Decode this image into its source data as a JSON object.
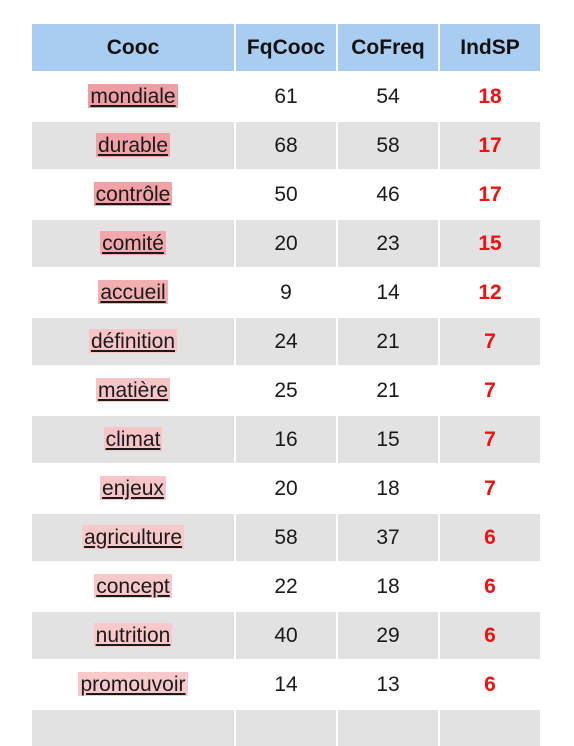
{
  "table": {
    "headers": [
      "Cooc",
      "FqCooc",
      "CoFreq",
      "IndSP"
    ],
    "rows": [
      {
        "cooc": "mondiale",
        "fqcooc": "61",
        "cofreq": "54",
        "indsp": "18",
        "highlight": "#f09ea3"
      },
      {
        "cooc": "durable",
        "fqcooc": "68",
        "cofreq": "58",
        "indsp": "17",
        "highlight": "#f0a2a6"
      },
      {
        "cooc": "contrôle",
        "fqcooc": "50",
        "cofreq": "46",
        "indsp": "17",
        "highlight": "#f0a2a6"
      },
      {
        "cooc": "comité",
        "fqcooc": "20",
        "cofreq": "23",
        "indsp": "15",
        "highlight": "#f1a7ab"
      },
      {
        "cooc": "accueil",
        "fqcooc": "9",
        "cofreq": "14",
        "indsp": "12",
        "highlight": "#f2aeb1"
      },
      {
        "cooc": "définition",
        "fqcooc": "24",
        "cofreq": "21",
        "indsp": "7",
        "highlight": "#f7c5c7"
      },
      {
        "cooc": "matière",
        "fqcooc": "25",
        "cofreq": "21",
        "indsp": "7",
        "highlight": "#f7c5c7"
      },
      {
        "cooc": "climat",
        "fqcooc": "16",
        "cofreq": "15",
        "indsp": "7",
        "highlight": "#f7c5c7"
      },
      {
        "cooc": "enjeux",
        "fqcooc": "20",
        "cofreq": "18",
        "indsp": "7",
        "highlight": "#f7c5c7"
      },
      {
        "cooc": "agriculture",
        "fqcooc": "58",
        "cofreq": "37",
        "indsp": "6",
        "highlight": "#f8c9cb"
      },
      {
        "cooc": "concept",
        "fqcooc": "22",
        "cofreq": "18",
        "indsp": "6",
        "highlight": "#f8c9cb"
      },
      {
        "cooc": "nutrition",
        "fqcooc": "40",
        "cofreq": "29",
        "indsp": "6",
        "highlight": "#f8c9cb"
      },
      {
        "cooc": "promouvoir",
        "fqcooc": "14",
        "cofreq": "13",
        "indsp": "6",
        "highlight": "#f8c9cb"
      },
      {
        "cooc": "",
        "fqcooc": "",
        "cofreq": "",
        "indsp": "",
        "highlight": ""
      }
    ]
  },
  "colors": {
    "header_bg": "#a9ccf1",
    "row_alt_bg": "#e2e2e2",
    "indsp_text": "#ee1111"
  }
}
